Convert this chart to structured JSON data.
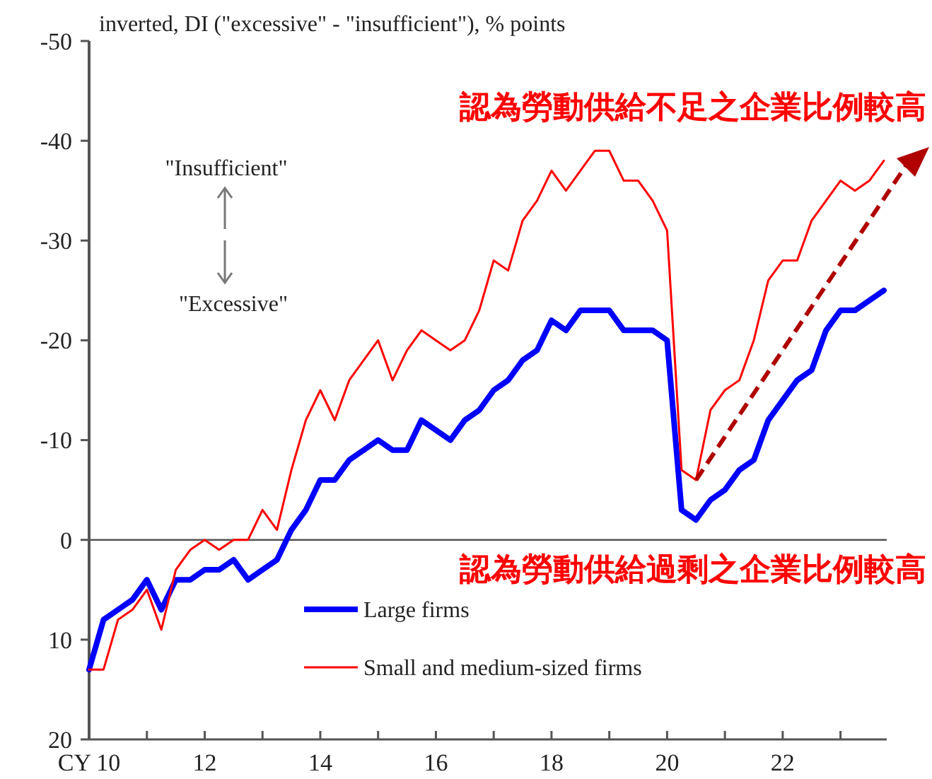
{
  "chart_data": {
    "type": "line",
    "ylabel": "inverted, DI (\"excessive\" - \"insufficient\"), % points",
    "annotations": [
      "認為勞動供給不足之企業比例較高",
      "認為勞動供給過剩之企業比例較高",
      "\"Insufficient\"",
      "\"Excessive\""
    ],
    "x": [
      10,
      10.25,
      10.5,
      10.75,
      11,
      11.25,
      11.5,
      11.75,
      12,
      12.25,
      12.5,
      12.75,
      13,
      13.25,
      13.5,
      13.75,
      14,
      14.25,
      14.5,
      14.75,
      15,
      15.25,
      15.5,
      15.75,
      16,
      16.25,
      16.5,
      16.75,
      17,
      17.25,
      17.5,
      17.75,
      18,
      18.25,
      18.5,
      18.75,
      19,
      19.25,
      19.5,
      19.75,
      20,
      20.25,
      20.5,
      20.75,
      21,
      21.25,
      21.5,
      21.75,
      22,
      22.25,
      22.5,
      22.75,
      23,
      23.25,
      23.5,
      23.75
    ],
    "series": [
      {
        "name": "Large firms",
        "color": "#0000ff",
        "values": [
          13,
          8,
          7,
          6,
          4,
          7,
          4,
          4,
          3,
          3,
          2,
          4,
          3,
          2,
          -1,
          -3,
          -6,
          -6,
          -8,
          -9,
          -10,
          -9,
          -9,
          -12,
          -11,
          -10,
          -12,
          -13,
          -15,
          -16,
          -18,
          -19,
          -22,
          -21,
          -23,
          -23,
          -23,
          -21,
          -21,
          -21,
          -20,
          -3,
          -2,
          -4,
          -5,
          -7,
          -8,
          -12,
          -14,
          -16,
          -17,
          -21,
          -23,
          -23,
          -24,
          -25
        ]
      },
      {
        "name": "Small and medium-sized firms",
        "color": "#ff0000",
        "values": [
          13,
          13,
          8,
          7,
          5,
          9,
          3,
          1,
          0,
          1,
          0,
          0,
          -3,
          -1,
          -7,
          -12,
          -15,
          -12,
          -16,
          -18,
          -20,
          -16,
          -19,
          -21,
          -20,
          -19,
          -20,
          -23,
          -28,
          -27,
          -32,
          -34,
          -37,
          -35,
          -37,
          -39,
          -39,
          -36,
          -36,
          -34,
          -31,
          -7,
          -6,
          -13,
          -15,
          -16,
          -20,
          -26,
          -28,
          -28,
          -32,
          -34,
          -36,
          -35,
          -36,
          -38
        ]
      }
    ],
    "xlim": [
      10,
      23.8
    ],
    "xticks": [
      {
        "value": 10,
        "label": "CY 10"
      },
      {
        "value": 11,
        "label": null
      },
      12,
      {
        "value": 13,
        "label": null
      },
      14,
      {
        "value": 15,
        "label": null
      },
      16,
      {
        "value": 17,
        "label": null
      },
      18,
      {
        "value": 19,
        "label": null
      },
      20,
      {
        "value": 21,
        "label": null
      },
      22,
      {
        "value": 23,
        "label": null
      }
    ],
    "ylim": [
      20,
      -50
    ],
    "yticks": [
      -50,
      -40,
      -30,
      -20,
      -10,
      0,
      10,
      20
    ],
    "ref_lines": [
      {
        "axis": "y",
        "value": 0,
        "color": "#555555"
      }
    ],
    "grid": false,
    "legend": "bottom",
    "marker": "none",
    "line_style": "solid"
  }
}
